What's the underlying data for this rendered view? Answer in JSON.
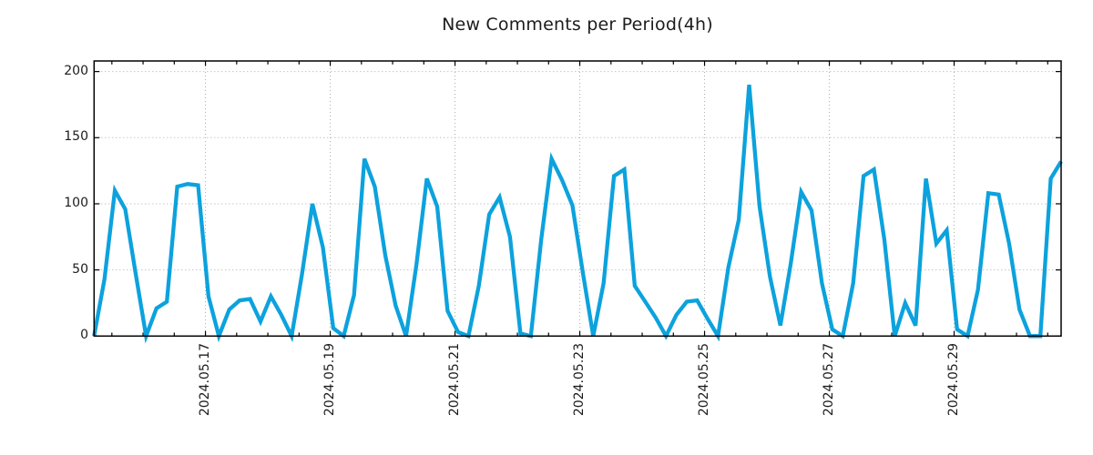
{
  "page": {
    "background_color": "#ffffff",
    "text_color": "#1c1c1c"
  },
  "chart_data": {
    "type": "line",
    "title": "New Comments per Period(4h)",
    "xlabel": "",
    "ylabel": "",
    "period_hours": 4,
    "grid": true,
    "legend_position": "none",
    "line_color": "#0ca2dd",
    "grid_color": "#ababab",
    "axis_color": "#000000",
    "ylim": [
      0,
      208
    ],
    "y_tick_values": [
      0,
      50,
      100,
      150,
      200
    ],
    "y_tick_labels": [
      "0",
      "50",
      "100",
      "150",
      "200"
    ],
    "x_tick_labels": [
      "2024.05.17",
      "2024.05.19",
      "2024.05.21",
      "2024.05.23",
      "2024.05.25",
      "2024.05.27",
      "2024.05.29"
    ],
    "x_tick_positions_periods": [
      10.71,
      22.71,
      34.71,
      46.71,
      58.71,
      70.71,
      82.71
    ],
    "minor_tick_every_periods": 3,
    "minor_tick_phase_periods": 1.71,
    "x_total_periods": 93,
    "values": [
      0,
      43,
      110,
      96,
      47,
      0,
      21,
      26,
      113,
      115,
      114,
      30,
      0,
      20,
      27,
      28,
      11,
      30,
      16,
      0,
      47,
      100,
      67,
      6,
      0,
      31,
      134,
      113,
      61,
      23,
      0,
      54,
      119,
      98,
      19,
      3,
      0,
      38,
      92,
      105,
      75,
      2,
      0,
      73,
      134,
      118,
      99,
      48,
      0,
      40,
      121,
      126,
      38,
      26,
      14,
      0,
      16,
      26,
      27,
      13,
      0,
      52,
      88,
      190,
      98,
      45,
      8,
      55,
      109,
      95,
      40,
      5,
      0,
      40,
      121,
      126,
      73,
      0,
      25,
      8,
      119,
      70,
      80,
      5,
      0,
      35,
      108,
      107,
      70,
      20,
      0,
      0,
      119,
      132
    ]
  }
}
